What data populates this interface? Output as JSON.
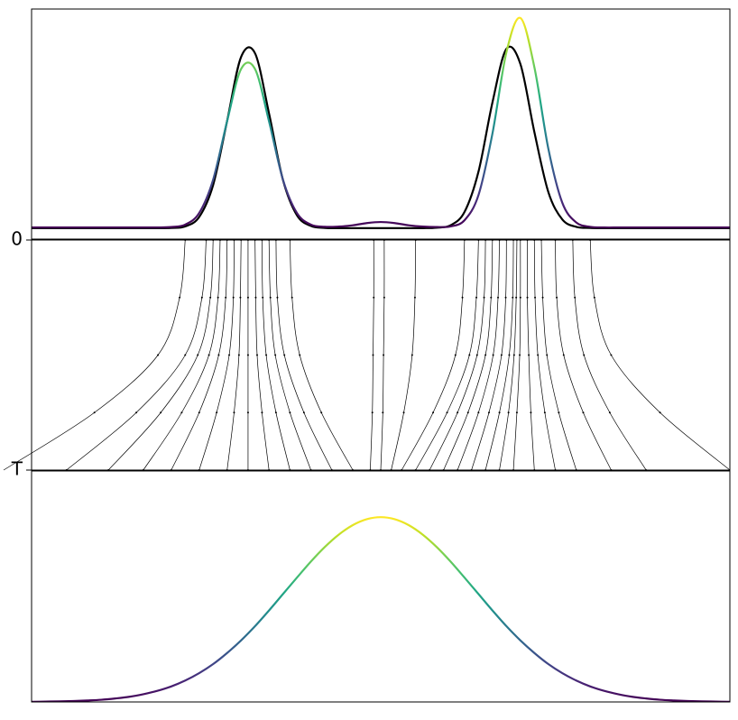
{
  "chart_data": [
    {
      "type": "line",
      "xlim": [
        0,
        100
      ],
      "ylim": [
        -0.05,
        1.0
      ],
      "x": [
        0,
        2,
        4,
        6,
        8,
        10,
        12,
        14,
        16,
        18,
        20,
        22,
        24,
        26,
        28,
        30,
        32,
        34,
        36,
        38,
        40,
        42,
        44,
        46,
        48,
        50,
        52,
        54,
        56,
        58,
        60,
        62,
        64,
        66,
        68,
        70,
        72,
        74,
        76,
        78,
        80,
        82,
        84,
        86,
        88,
        90,
        92,
        94,
        96,
        98,
        100
      ],
      "series": [
        {
          "color": "#000000",
          "values": [
            0,
            0,
            0,
            0,
            0,
            0,
            0,
            0,
            0,
            0,
            0.001,
            0.008,
            0.051,
            0.197,
            0.489,
            0.781,
            0.798,
            0.524,
            0.22,
            0.059,
            0.01,
            0.001,
            0,
            0,
            0,
            0,
            0,
            0,
            0,
            0.002,
            0.013,
            0.074,
            0.258,
            0.574,
            0.818,
            0.749,
            0.439,
            0.165,
            0.04,
            0.006,
            0.001,
            0,
            0,
            0,
            0,
            0,
            0,
            0,
            0,
            0,
            0
          ]
        },
        {
          "colormap": "viridis",
          "values": [
            0.003,
            0.003,
            0.003,
            0.003,
            0.003,
            0.003,
            0.003,
            0.003,
            0.003,
            0.003,
            0.005,
            0.016,
            0.069,
            0.221,
            0.488,
            0.726,
            0.726,
            0.488,
            0.221,
            0.069,
            0.016,
            0.006,
            0.007,
            0.013,
            0.023,
            0.028,
            0.023,
            0.013,
            0.007,
            0.005,
            0.008,
            0.036,
            0.151,
            0.432,
            0.803,
            0.959,
            0.735,
            0.363,
            0.116,
            0.026,
            0.006,
            0.003,
            0.003,
            0.003,
            0.003,
            0.003,
            0.003,
            0.003,
            0.003,
            0.003,
            0.003
          ]
        }
      ]
    },
    {
      "type": "flow",
      "xlim": [
        0,
        100
      ],
      "ylim": [
        0,
        1
      ],
      "invert_y": true,
      "color": "#000000",
      "yticks": [
        {
          "value": 0,
          "label": "0"
        },
        {
          "value": 1,
          "label": "T"
        }
      ],
      "t": [
        0,
        0.25,
        0.5,
        0.75,
        1
      ],
      "trajectories": [
        [
          22,
          21.2,
          18.1,
          9,
          -4
        ],
        [
          25,
          24.4,
          22,
          15,
          5
        ],
        [
          26,
          25.6,
          23.8,
          18.5,
          11
        ],
        [
          27,
          26.7,
          25.4,
          21.5,
          16
        ],
        [
          28,
          27.8,
          26.8,
          24,
          20
        ],
        [
          29,
          28.9,
          28.3,
          26.5,
          24
        ],
        [
          30,
          29.9,
          29.7,
          29,
          28
        ],
        [
          31,
          31,
          31,
          31,
          31
        ],
        [
          32,
          32.1,
          32.3,
          33,
          34
        ],
        [
          33,
          33.1,
          33.6,
          35,
          37
        ],
        [
          34,
          34.2,
          34.9,
          37,
          40
        ],
        [
          35,
          35.2,
          36.2,
          39,
          43
        ],
        [
          37,
          37.3,
          38.4,
          41.5,
          46
        ],
        [
          49,
          49,
          48.9,
          48.8,
          48.5
        ],
        [
          50.5,
          50.5,
          50.4,
          50.3,
          50
        ],
        [
          55,
          54.9,
          54.5,
          53.3,
          51.5
        ],
        [
          62,
          61.7,
          60.7,
          57.5,
          53
        ],
        [
          64,
          63.7,
          62.7,
          59.5,
          55
        ],
        [
          65,
          64.8,
          63.8,
          61,
          57
        ],
        [
          66,
          65.8,
          65,
          62.5,
          59
        ],
        [
          67,
          66.8,
          66.1,
          64,
          61
        ],
        [
          68,
          67.9,
          67.3,
          65.5,
          63
        ],
        [
          69,
          68.9,
          68.4,
          67,
          65
        ],
        [
          69.5,
          69.4,
          69.1,
          68.3,
          67
        ],
        [
          70,
          70,
          69.9,
          69.5,
          69
        ],
        [
          71,
          71,
          71.2,
          71.5,
          72
        ],
        [
          72,
          72.1,
          72.5,
          73.5,
          75
        ],
        [
          73,
          73.2,
          73.8,
          75.5,
          78
        ],
        [
          75,
          75.2,
          76.2,
          79,
          83
        ],
        [
          77.5,
          77.8,
          79.1,
          82.8,
          88
        ],
        [
          80,
          80.6,
          83,
          90,
          100
        ]
      ]
    },
    {
      "type": "line",
      "xlim": [
        0,
        100
      ],
      "ylim": [
        0,
        1.25
      ],
      "x": [
        0,
        2,
        4,
        6,
        8,
        10,
        12,
        14,
        16,
        18,
        20,
        22,
        24,
        26,
        28,
        30,
        32,
        34,
        36,
        38,
        40,
        42,
        44,
        46,
        48,
        50,
        52,
        54,
        56,
        58,
        60,
        62,
        64,
        66,
        68,
        70,
        72,
        74,
        76,
        78,
        80,
        82,
        84,
        86,
        88,
        90,
        92,
        94,
        96,
        98,
        100
      ],
      "series": [
        {
          "colormap": "viridis",
          "values": [
            0.001,
            0.002,
            0.003,
            0.005,
            0.008,
            0.012,
            0.019,
            0.028,
            0.042,
            0.06,
            0.084,
            0.116,
            0.156,
            0.205,
            0.265,
            0.333,
            0.41,
            0.495,
            0.584,
            0.673,
            0.76,
            0.839,
            0.906,
            0.957,
            0.989,
            1,
            0.989,
            0.957,
            0.906,
            0.839,
            0.76,
            0.673,
            0.584,
            0.495,
            0.41,
            0.333,
            0.265,
            0.205,
            0.156,
            0.116,
            0.084,
            0.06,
            0.042,
            0.028,
            0.019,
            0.012,
            0.008,
            0.005,
            0.003,
            0.002,
            0.001
          ]
        }
      ]
    }
  ]
}
